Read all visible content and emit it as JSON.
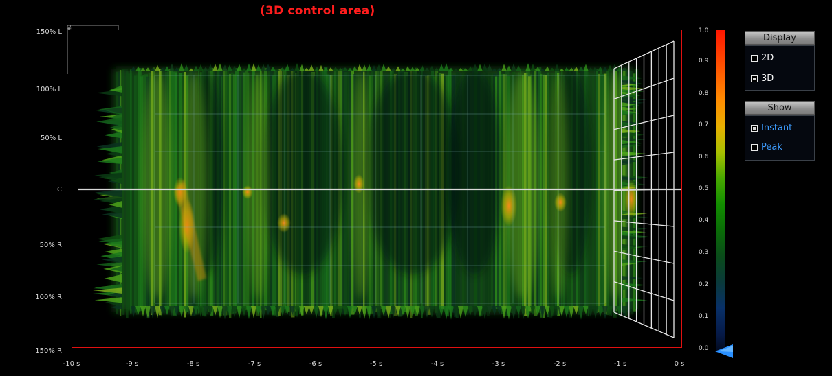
{
  "title": "(3D control area)",
  "y_axis": {
    "labels": [
      "150% L",
      "100% L",
      "50% L",
      "C",
      "50% R",
      "100% R",
      "150% R"
    ]
  },
  "x_axis": {
    "labels": [
      "-10 s",
      "-9 s",
      "-8 s",
      "-7 s",
      "-6 s",
      "-5 s",
      "-4 s",
      "-3 s",
      "-2 s",
      "-1 s",
      "0 s"
    ]
  },
  "colorbar": {
    "labels": [
      "1.0",
      "0.9",
      "0.8",
      "0.7",
      "0.6",
      "0.5",
      "0.4",
      "0.3",
      "0.2",
      "0.1",
      "0.0"
    ],
    "min": 0.0,
    "max": 1.0,
    "current_value": 0.0
  },
  "display_panel": {
    "header": "Display",
    "options": [
      {
        "label": "2D",
        "checked": false
      },
      {
        "label": "3D",
        "checked": true
      }
    ]
  },
  "show_panel": {
    "header": "Show",
    "options": [
      {
        "label": "Instant",
        "checked": true
      },
      {
        "label": "Peak",
        "checked": false
      }
    ]
  },
  "colors": {
    "frame": "#e01010",
    "title": "#ff1d1d",
    "option_link": "#3d9cff",
    "pointer": "#2a90ff"
  }
}
